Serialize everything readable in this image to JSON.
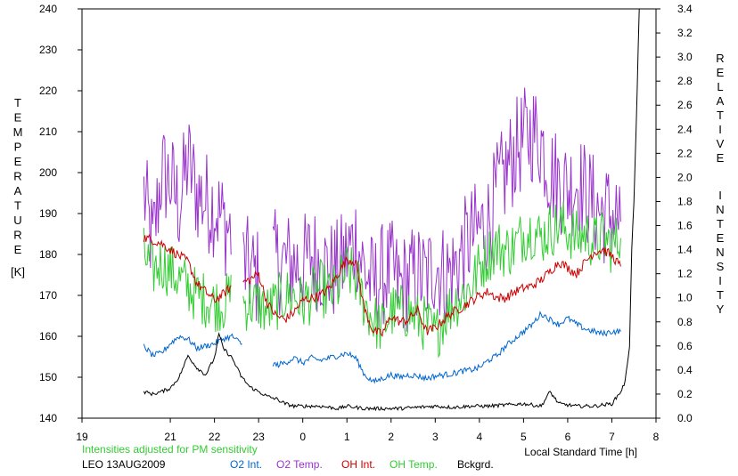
{
  "chart_data": {
    "type": "line",
    "xlabel": "Local Standard Time [h]",
    "left_axis_title_letters": [
      "T",
      "E",
      "M",
      "P",
      "E",
      "R",
      "A",
      "T",
      "U",
      "R",
      "E"
    ],
    "left_axis_unit": "[K]",
    "right_axis_title_letters": [
      "R",
      "E",
      "L",
      "A",
      "T",
      "I",
      "V",
      "E",
      "I",
      "N",
      "T",
      "E",
      "N",
      "S",
      "I",
      "T",
      "Y"
    ],
    "ylim": [
      140,
      240
    ],
    "y2lim": [
      0.0,
      3.4
    ],
    "xlim": [
      19,
      32
    ],
    "x_tick_labels": [
      "19",
      "21",
      "22",
      "23",
      "0",
      "1",
      "2",
      "3",
      "4",
      "5",
      "6",
      "7",
      "8"
    ],
    "x_tick_positions": [
      19,
      21,
      22,
      23,
      24,
      25,
      26,
      27,
      28,
      29,
      30,
      31,
      32
    ],
    "y_tick_labels": [
      "140",
      "150",
      "160",
      "170",
      "180",
      "190",
      "200",
      "210",
      "220",
      "230",
      "240"
    ],
    "y2_tick_labels": [
      "0.0",
      "0.2",
      "0.4",
      "0.6",
      "0.8",
      "1.0",
      "1.2",
      "1.4",
      "1.6",
      "1.8",
      "2.0",
      "2.2",
      "2.4",
      "2.6",
      "2.8",
      "3.0",
      "3.2",
      "3.4"
    ],
    "note": "Intensities adjusted for PM sensitivity",
    "station": "LEO 13AUG2009",
    "legend": [
      {
        "label": "O2 Int.",
        "color": "#0066cc"
      },
      {
        "label": "O2 Temp.",
        "color": "#9933cc"
      },
      {
        "label": "OH Int.",
        "color": "#cc0000"
      },
      {
        "label": "OH Temp.",
        "color": "#33cc33"
      },
      {
        "label": "Bckgrd.",
        "color": "#000000"
      }
    ],
    "series": [
      {
        "name": "O2 Temp.",
        "axis": "left",
        "color": "#9933cc",
        "anchors": [
          [
            20.4,
            195
          ],
          [
            20.6,
            182
          ],
          [
            20.8,
            200
          ],
          [
            21.0,
            198
          ],
          [
            21.2,
            192
          ],
          [
            21.4,
            203
          ],
          [
            21.6,
            195
          ],
          [
            21.8,
            193
          ],
          [
            22.0,
            192
          ],
          [
            22.2,
            188
          ],
          [
            22.4,
            185
          ],
          [
            22.6,
            178
          ],
          [
            22.8,
            176
          ],
          [
            23.0,
            174
          ],
          [
            23.2,
            179
          ],
          [
            23.4,
            178
          ],
          [
            23.6,
            178
          ],
          [
            23.8,
            178
          ],
          [
            24.0,
            177
          ],
          [
            24.2,
            180
          ],
          [
            24.4,
            178
          ],
          [
            24.6,
            176
          ],
          [
            24.8,
            176
          ],
          [
            25.0,
            180
          ],
          [
            25.2,
            184
          ],
          [
            25.4,
            176
          ],
          [
            25.6,
            172
          ],
          [
            25.8,
            175
          ],
          [
            26.0,
            176
          ],
          [
            26.2,
            172
          ],
          [
            26.4,
            174
          ],
          [
            26.6,
            175
          ],
          [
            26.8,
            174
          ],
          [
            27.0,
            178
          ],
          [
            27.2,
            175
          ],
          [
            27.4,
            176
          ],
          [
            27.6,
            180
          ],
          [
            27.8,
            184
          ],
          [
            28.0,
            186
          ],
          [
            28.2,
            188
          ],
          [
            28.4,
            195
          ],
          [
            28.6,
            200
          ],
          [
            28.8,
            205
          ],
          [
            29.0,
            208
          ],
          [
            29.2,
            210
          ],
          [
            29.4,
            208
          ],
          [
            29.6,
            200
          ],
          [
            29.8,
            198
          ],
          [
            30.0,
            196
          ],
          [
            30.2,
            198
          ],
          [
            30.4,
            195
          ],
          [
            30.6,
            192
          ],
          [
            30.8,
            190
          ],
          [
            31.0,
            190
          ],
          [
            31.2,
            188
          ]
        ],
        "jitter": 13,
        "gaps": [
          [
            22.4,
            22.65
          ],
          [
            23.05,
            23.3
          ]
        ]
      },
      {
        "name": "OH Temp.",
        "axis": "left",
        "color": "#33cc33",
        "anchors": [
          [
            20.4,
            180
          ],
          [
            20.6,
            176
          ],
          [
            20.8,
            178
          ],
          [
            21.0,
            176
          ],
          [
            21.2,
            174
          ],
          [
            21.4,
            172
          ],
          [
            21.6,
            170
          ],
          [
            21.8,
            169
          ],
          [
            22.0,
            168
          ],
          [
            22.2,
            168
          ],
          [
            22.4,
            170
          ],
          [
            22.6,
            168
          ],
          [
            22.8,
            168
          ],
          [
            23.0,
            168
          ],
          [
            23.2,
            166
          ],
          [
            23.4,
            168
          ],
          [
            23.6,
            170
          ],
          [
            23.8,
            170
          ],
          [
            24.0,
            168
          ],
          [
            24.2,
            170
          ],
          [
            24.4,
            172
          ],
          [
            24.6,
            170
          ],
          [
            24.8,
            172
          ],
          [
            25.0,
            176
          ],
          [
            25.2,
            174
          ],
          [
            25.4,
            168
          ],
          [
            25.6,
            164
          ],
          [
            25.8,
            162
          ],
          [
            26.0,
            166
          ],
          [
            26.2,
            166
          ],
          [
            26.4,
            166
          ],
          [
            26.6,
            164
          ],
          [
            26.8,
            163
          ],
          [
            27.0,
            160
          ],
          [
            27.2,
            165
          ],
          [
            27.4,
            168
          ],
          [
            27.6,
            170
          ],
          [
            27.8,
            172
          ],
          [
            28.0,
            177
          ],
          [
            28.2,
            180
          ],
          [
            28.4,
            182
          ],
          [
            28.6,
            181
          ],
          [
            28.8,
            182
          ],
          [
            29.0,
            185
          ],
          [
            29.2,
            186
          ],
          [
            29.4,
            184
          ],
          [
            29.6,
            186
          ],
          [
            29.8,
            187
          ],
          [
            30.0,
            186
          ],
          [
            30.2,
            184
          ],
          [
            30.4,
            185
          ],
          [
            30.6,
            183
          ],
          [
            30.8,
            184
          ],
          [
            31.0,
            182
          ],
          [
            31.2,
            184
          ]
        ],
        "jitter": 7,
        "gaps": [
          [
            22.4,
            22.65
          ]
        ]
      },
      {
        "name": "OH Int.",
        "axis": "right",
        "color": "#cc0000",
        "anchors": [
          [
            20.4,
            1.5
          ],
          [
            20.6,
            1.48
          ],
          [
            20.8,
            1.45
          ],
          [
            21.0,
            1.4
          ],
          [
            21.2,
            1.35
          ],
          [
            21.4,
            1.3
          ],
          [
            21.6,
            1.12
          ],
          [
            21.8,
            1.05
          ],
          [
            22.0,
            0.98
          ],
          [
            22.2,
            1.03
          ],
          [
            22.4,
            1.1
          ],
          [
            22.6,
            1.12
          ],
          [
            22.8,
            1.15
          ],
          [
            23.0,
            1.2
          ],
          [
            23.2,
            0.95
          ],
          [
            23.4,
            0.85
          ],
          [
            23.6,
            0.82
          ],
          [
            23.8,
            0.88
          ],
          [
            24.0,
            0.98
          ],
          [
            24.2,
            1.0
          ],
          [
            24.4,
            1.02
          ],
          [
            24.6,
            1.08
          ],
          [
            24.8,
            1.2
          ],
          [
            25.0,
            1.32
          ],
          [
            25.2,
            1.3
          ],
          [
            25.4,
            0.9
          ],
          [
            25.6,
            0.72
          ],
          [
            25.8,
            0.7
          ],
          [
            26.0,
            0.85
          ],
          [
            26.2,
            0.8
          ],
          [
            26.4,
            0.82
          ],
          [
            26.6,
            0.9
          ],
          [
            26.8,
            0.72
          ],
          [
            27.0,
            0.75
          ],
          [
            27.2,
            0.82
          ],
          [
            27.4,
            0.88
          ],
          [
            27.6,
            0.92
          ],
          [
            27.8,
            0.97
          ],
          [
            28.0,
            1.02
          ],
          [
            28.2,
            1.05
          ],
          [
            28.4,
            1.0
          ],
          [
            28.6,
            1.0
          ],
          [
            28.8,
            1.05
          ],
          [
            29.0,
            1.08
          ],
          [
            29.2,
            1.1
          ],
          [
            29.4,
            1.15
          ],
          [
            29.6,
            1.22
          ],
          [
            29.8,
            1.3
          ],
          [
            30.0,
            1.25
          ],
          [
            30.2,
            1.2
          ],
          [
            30.4,
            1.3
          ],
          [
            30.6,
            1.38
          ],
          [
            30.8,
            1.4
          ],
          [
            31.0,
            1.35
          ],
          [
            31.2,
            1.26
          ]
        ],
        "jitter": 0.04,
        "gaps": [
          [
            22.4,
            22.65
          ]
        ]
      },
      {
        "name": "O2 Int.",
        "axis": "right",
        "color": "#0066cc",
        "anchors": [
          [
            20.4,
            0.6
          ],
          [
            20.6,
            0.52
          ],
          [
            20.8,
            0.54
          ],
          [
            21.0,
            0.62
          ],
          [
            21.2,
            0.68
          ],
          [
            21.4,
            0.66
          ],
          [
            21.6,
            0.58
          ],
          [
            21.8,
            0.6
          ],
          [
            22.0,
            0.62
          ],
          [
            22.2,
            0.66
          ],
          [
            22.4,
            0.68
          ],
          [
            22.6,
            0.62
          ],
          [
            22.8,
            0.6
          ],
          [
            23.0,
            0.58
          ],
          [
            23.2,
            0.48
          ],
          [
            23.4,
            0.44
          ],
          [
            23.6,
            0.46
          ],
          [
            23.8,
            0.5
          ],
          [
            24.0,
            0.46
          ],
          [
            24.2,
            0.5
          ],
          [
            24.4,
            0.48
          ],
          [
            24.6,
            0.5
          ],
          [
            24.8,
            0.52
          ],
          [
            25.0,
            0.54
          ],
          [
            25.2,
            0.5
          ],
          [
            25.4,
            0.36
          ],
          [
            25.6,
            0.3
          ],
          [
            25.8,
            0.33
          ],
          [
            26.0,
            0.36
          ],
          [
            26.2,
            0.34
          ],
          [
            26.4,
            0.36
          ],
          [
            26.6,
            0.35
          ],
          [
            26.8,
            0.33
          ],
          [
            27.0,
            0.35
          ],
          [
            27.2,
            0.36
          ],
          [
            27.4,
            0.37
          ],
          [
            27.6,
            0.39
          ],
          [
            27.8,
            0.4
          ],
          [
            28.0,
            0.42
          ],
          [
            28.2,
            0.48
          ],
          [
            28.4,
            0.52
          ],
          [
            28.6,
            0.6
          ],
          [
            28.8,
            0.66
          ],
          [
            29.0,
            0.72
          ],
          [
            29.2,
            0.78
          ],
          [
            29.4,
            0.87
          ],
          [
            29.6,
            0.82
          ],
          [
            29.8,
            0.78
          ],
          [
            30.0,
            0.83
          ],
          [
            30.2,
            0.78
          ],
          [
            30.4,
            0.74
          ],
          [
            30.6,
            0.72
          ],
          [
            30.8,
            0.7
          ],
          [
            31.0,
            0.72
          ],
          [
            31.2,
            0.72
          ]
        ],
        "jitter": 0.025,
        "gaps": [
          [
            22.65,
            23.3
          ]
        ]
      },
      {
        "name": "Bckgrd.",
        "axis": "right",
        "color": "#000000",
        "anchors": [
          [
            20.4,
            0.22
          ],
          [
            20.6,
            0.2
          ],
          [
            20.8,
            0.22
          ],
          [
            21.0,
            0.25
          ],
          [
            21.2,
            0.34
          ],
          [
            21.4,
            0.52
          ],
          [
            21.6,
            0.42
          ],
          [
            21.8,
            0.36
          ],
          [
            22.0,
            0.5
          ],
          [
            22.1,
            0.7
          ],
          [
            22.2,
            0.58
          ],
          [
            22.4,
            0.5
          ],
          [
            22.6,
            0.35
          ],
          [
            22.8,
            0.26
          ],
          [
            23.0,
            0.22
          ],
          [
            23.2,
            0.18
          ],
          [
            23.4,
            0.16
          ],
          [
            23.6,
            0.12
          ],
          [
            23.8,
            0.1
          ],
          [
            24.0,
            0.1
          ],
          [
            24.4,
            0.1
          ],
          [
            24.8,
            0.08
          ],
          [
            25.0,
            0.1
          ],
          [
            25.4,
            0.08
          ],
          [
            25.8,
            0.08
          ],
          [
            26.2,
            0.08
          ],
          [
            26.6,
            0.09
          ],
          [
            27.0,
            0.1
          ],
          [
            27.4,
            0.09
          ],
          [
            27.8,
            0.1
          ],
          [
            28.2,
            0.1
          ],
          [
            28.6,
            0.11
          ],
          [
            29.0,
            0.12
          ],
          [
            29.4,
            0.1
          ],
          [
            29.6,
            0.22
          ],
          [
            29.8,
            0.12
          ],
          [
            30.2,
            0.1
          ],
          [
            30.6,
            0.1
          ],
          [
            31.0,
            0.12
          ],
          [
            31.2,
            0.22
          ],
          [
            31.3,
            0.3
          ],
          [
            31.4,
            0.6
          ],
          [
            31.45,
            1.4
          ],
          [
            31.5,
            1.8
          ],
          [
            31.55,
            2.4
          ],
          [
            31.62,
            3.4
          ]
        ],
        "jitter": 0.015,
        "gaps": []
      }
    ]
  }
}
